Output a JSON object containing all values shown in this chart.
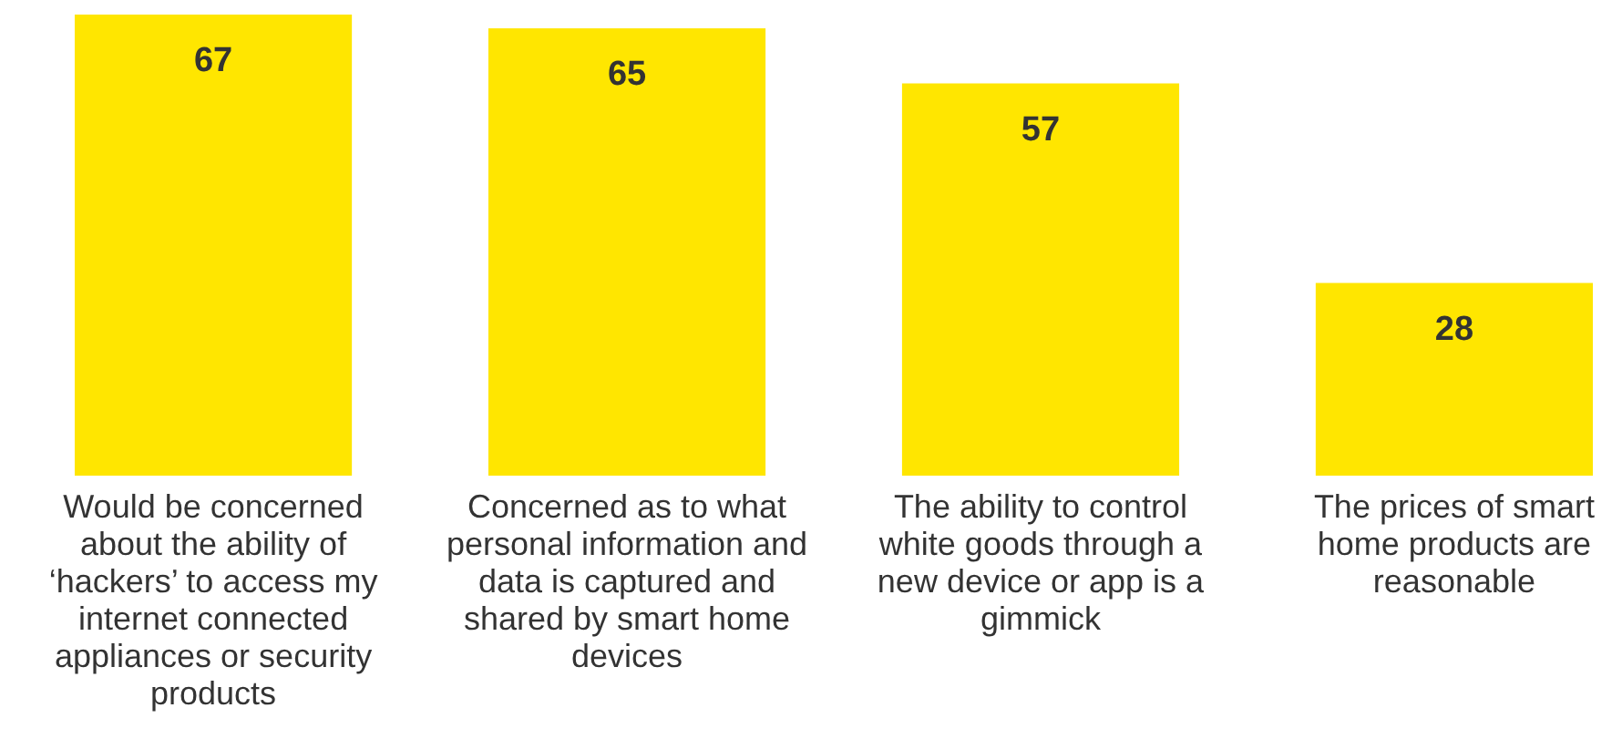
{
  "chart_data": {
    "type": "bar",
    "categories": [
      "Would be concerned about the ability of ‘hackers’ to access my internet connected appliances or security products",
      "Concerned as to what personal information and data is captured and shared by smart home devices",
      "The ability to control white goods through a new device or app is a gimmick",
      "The prices of smart home products are reasonable"
    ],
    "values": [
      67,
      65,
      57,
      28
    ],
    "color": "#ffe600",
    "data_labels": true
  }
}
